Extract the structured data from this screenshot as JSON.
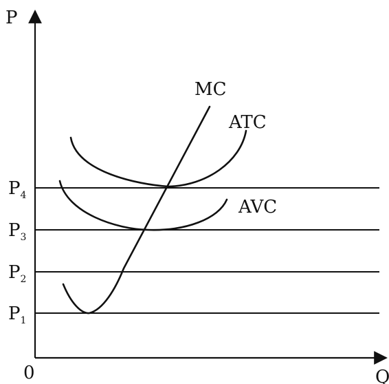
{
  "axes": {
    "y_label": "P",
    "x_label": "Q",
    "origin_label": "0"
  },
  "price_levels": [
    {
      "base": "P",
      "sub": "4"
    },
    {
      "base": "P",
      "sub": "3"
    },
    {
      "base": "P",
      "sub": "2"
    },
    {
      "base": "P",
      "sub": "1"
    }
  ],
  "curves": {
    "mc": "MC",
    "atc": "ATC",
    "avc": "AVC"
  }
}
